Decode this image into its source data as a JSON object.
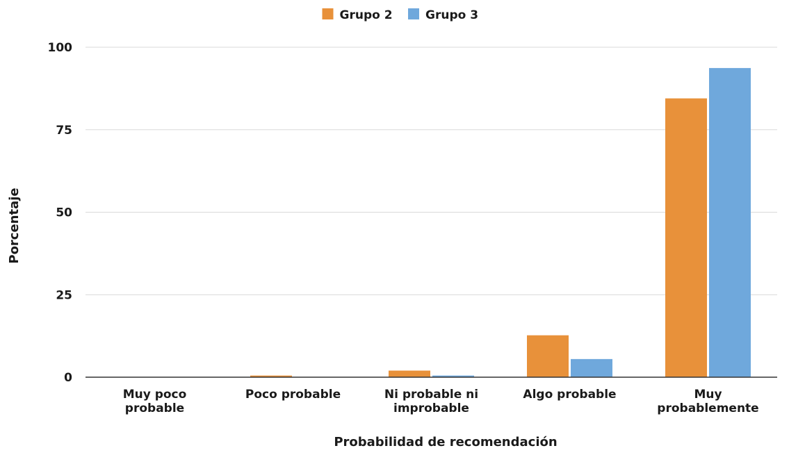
{
  "chart_data": {
    "type": "bar",
    "title": "",
    "xlabel": "Probabilidad de recomendación",
    "ylabel": "Porcentaje",
    "ylim": [
      0,
      100
    ],
    "yticks": [
      "0",
      "25",
      "50",
      "75",
      "100"
    ],
    "grid": true,
    "legend_position": "top-center",
    "categories": [
      [
        "Muy poco",
        "probable"
      ],
      [
        "Poco probable"
      ],
      [
        "Ni probable ni",
        "improbable"
      ],
      [
        "Algo probable"
      ],
      [
        "Muy",
        "probablemente"
      ]
    ],
    "series": [
      {
        "name": "Grupo 2",
        "color": "#E8913A",
        "values": [
          0,
          0.5,
          2,
          12.7,
          84.5
        ]
      },
      {
        "name": "Grupo 3",
        "color": "#6FA8DC",
        "values": [
          0,
          0,
          0.5,
          5.5,
          93.7
        ]
      }
    ]
  }
}
